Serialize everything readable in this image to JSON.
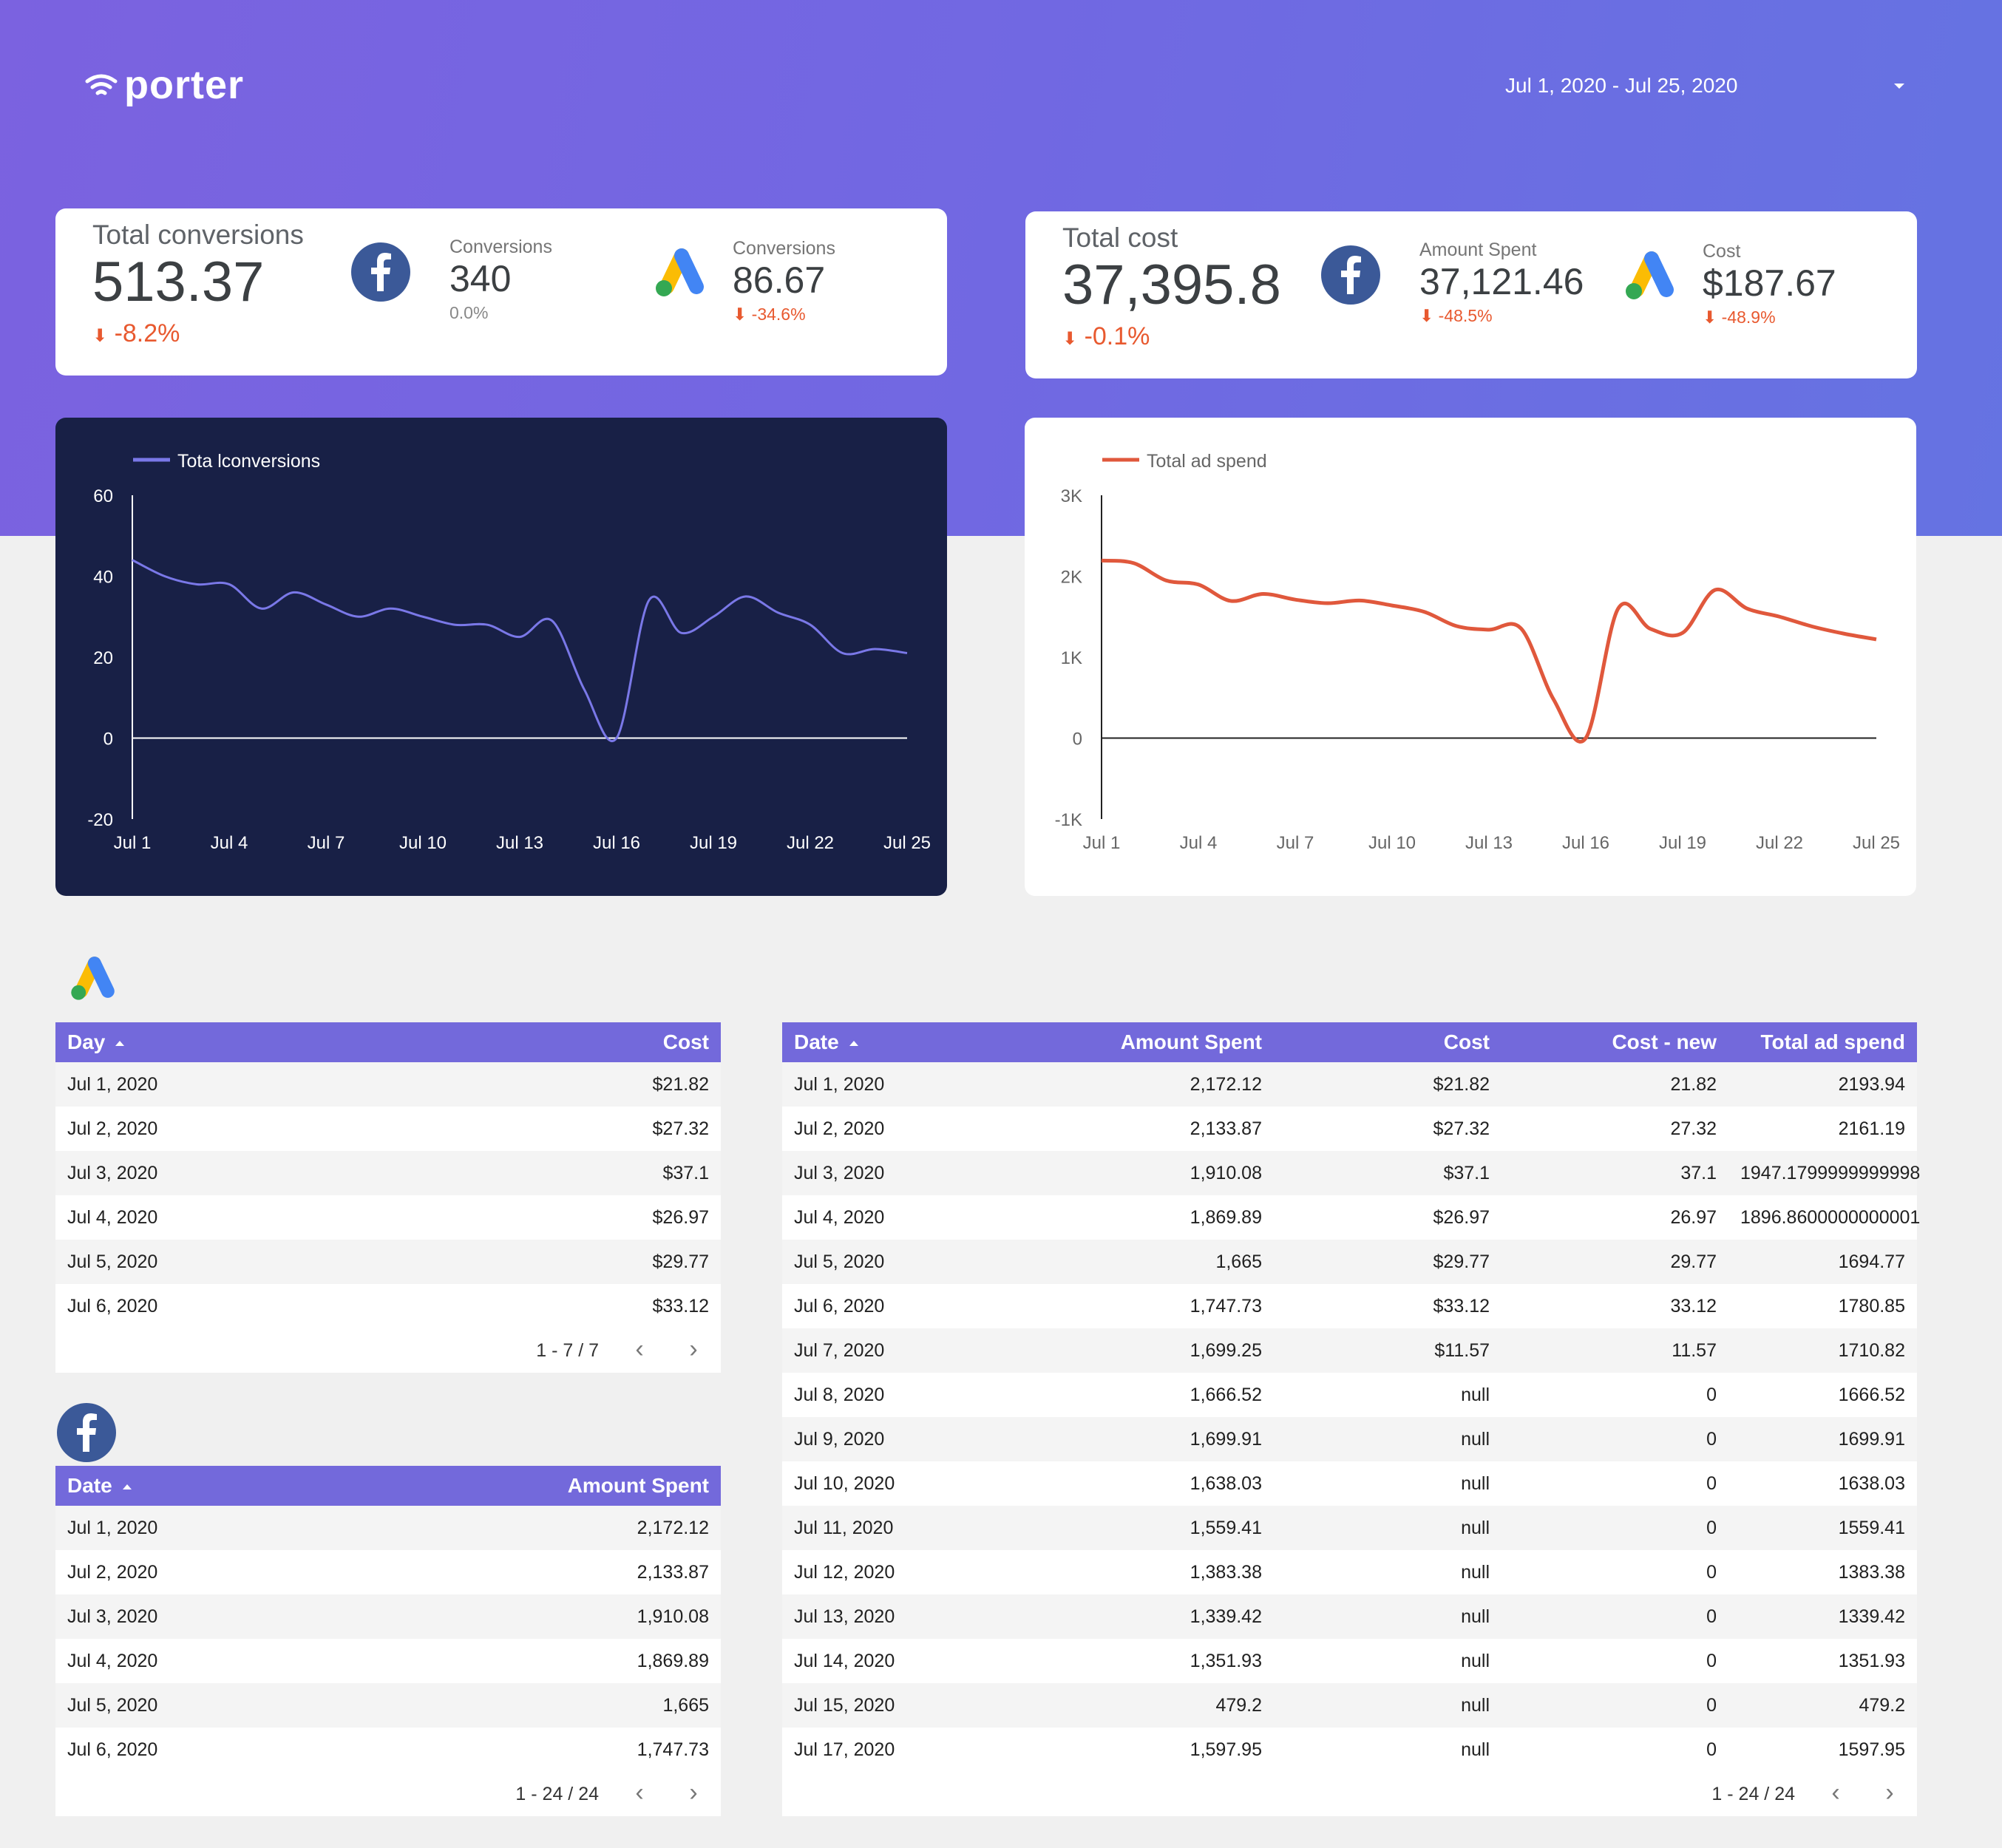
{
  "header": {
    "logo_text": "porter",
    "date_range": "Jul 1, 2020 - Jul 25, 2020"
  },
  "conversions_card": {
    "title": "Total conversions",
    "value": "513.37",
    "delta": "-8.2%",
    "facebook": {
      "label": "Conversions",
      "value": "340",
      "delta": "0.0%"
    },
    "google": {
      "label": "Conversions",
      "value": "86.67",
      "delta": "-34.6%"
    }
  },
  "cost_card": {
    "title": "Total cost",
    "value": "37,395.8",
    "delta": "-0.1%",
    "facebook": {
      "label": "Amount Spent",
      "value": "37,121.46",
      "delta": "-48.5%"
    },
    "google": {
      "label": "Cost",
      "value": "$187.67",
      "delta": "-48.9%"
    }
  },
  "colors": {
    "hero_gradient": [
      "#7b62e0",
      "#6573e2"
    ],
    "navy_chart_bg": "#182046",
    "conversion_line": "#7a78e8",
    "spend_line": "#e0583c",
    "table_header": "#7369db",
    "negative": "#e8592f",
    "facebook_blue": "#3b5998"
  },
  "chart_data": [
    {
      "type": "line",
      "legend": "Tota lconversions",
      "x_ticks": [
        "Jul 1",
        "Jul 4",
        "Jul 7",
        "Jul 10",
        "Jul 13",
        "Jul 16",
        "Jul 19",
        "Jul 22",
        "Jul 25"
      ],
      "y_ticks": [
        "60",
        "40",
        "20",
        "0",
        "-20"
      ],
      "ylim": [
        -20,
        60
      ],
      "x": [
        "Jul 1",
        "Jul 2",
        "Jul 3",
        "Jul 4",
        "Jul 5",
        "Jul 6",
        "Jul 7",
        "Jul 8",
        "Jul 9",
        "Jul 10",
        "Jul 11",
        "Jul 12",
        "Jul 13",
        "Jul 14",
        "Jul 15",
        "Jul 16",
        "Jul 17",
        "Jul 18",
        "Jul 19",
        "Jul 20",
        "Jul 21",
        "Jul 22",
        "Jul 23",
        "Jul 24",
        "Jul 25"
      ],
      "series": [
        {
          "values": [
            44,
            40,
            38,
            38,
            32,
            36,
            33,
            30,
            32,
            30,
            28,
            28,
            25,
            29,
            12,
            0,
            34,
            26,
            30,
            35,
            31,
            28,
            21,
            22,
            21
          ]
        }
      ]
    },
    {
      "type": "line",
      "legend": "Total ad spend",
      "x_ticks": [
        "Jul 1",
        "Jul 4",
        "Jul 7",
        "Jul 10",
        "Jul 13",
        "Jul 16",
        "Jul 19",
        "Jul 22",
        "Jul 25"
      ],
      "y_ticks": [
        "3K",
        "2K",
        "1K",
        "0",
        "-1K"
      ],
      "ylim": [
        -1000,
        3000
      ],
      "x": [
        "Jul 1",
        "Jul 2",
        "Jul 3",
        "Jul 4",
        "Jul 5",
        "Jul 6",
        "Jul 7",
        "Jul 8",
        "Jul 9",
        "Jul 10",
        "Jul 11",
        "Jul 12",
        "Jul 13",
        "Jul 14",
        "Jul 15",
        "Jul 16",
        "Jul 17",
        "Jul 18",
        "Jul 19",
        "Jul 20",
        "Jul 21",
        "Jul 22",
        "Jul 23",
        "Jul 24",
        "Jul 25"
      ],
      "series": [
        {
          "values": [
            2193.94,
            2161.19,
            1947.18,
            1896.86,
            1694.77,
            1780.85,
            1710.82,
            1666.52,
            1699.91,
            1638.03,
            1559.41,
            1383.38,
            1339.42,
            1351.93,
            479.2,
            0,
            1597.95,
            1350,
            1300,
            1830,
            1600,
            1500,
            1380,
            1290,
            1220
          ]
        }
      ]
    }
  ],
  "google_table": {
    "columns": [
      "Day",
      "Cost"
    ],
    "rows": [
      [
        "Jul 1, 2020",
        "$21.82"
      ],
      [
        "Jul 2, 2020",
        "$27.32"
      ],
      [
        "Jul 3, 2020",
        "$37.1"
      ],
      [
        "Jul 4, 2020",
        "$26.97"
      ],
      [
        "Jul 5, 2020",
        "$29.77"
      ],
      [
        "Jul 6, 2020",
        "$33.12"
      ]
    ],
    "pagination": "1 - 7 / 7"
  },
  "facebook_table": {
    "columns": [
      "Date",
      "Amount Spent"
    ],
    "rows": [
      [
        "Jul 1, 2020",
        "2,172.12"
      ],
      [
        "Jul 2, 2020",
        "2,133.87"
      ],
      [
        "Jul 3, 2020",
        "1,910.08"
      ],
      [
        "Jul 4, 2020",
        "1,869.89"
      ],
      [
        "Jul 5, 2020",
        "1,665"
      ],
      [
        "Jul 6, 2020",
        "1,747.73"
      ]
    ],
    "pagination": "1 - 24 / 24"
  },
  "combined_table": {
    "columns": [
      "Date",
      "Amount Spent",
      "Cost",
      "Cost - new",
      "Total ad spend"
    ],
    "rows": [
      [
        "Jul 1, 2020",
        "2,172.12",
        "$21.82",
        "21.82",
        "2193.94"
      ],
      [
        "Jul 2, 2020",
        "2,133.87",
        "$27.32",
        "27.32",
        "2161.19"
      ],
      [
        "Jul 3, 2020",
        "1,910.08",
        "$37.1",
        "37.1",
        "1947.1799999999998"
      ],
      [
        "Jul 4, 2020",
        "1,869.89",
        "$26.97",
        "26.97",
        "1896.8600000000001"
      ],
      [
        "Jul 5, 2020",
        "1,665",
        "$29.77",
        "29.77",
        "1694.77"
      ],
      [
        "Jul 6, 2020",
        "1,747.73",
        "$33.12",
        "33.12",
        "1780.85"
      ],
      [
        "Jul 7, 2020",
        "1,699.25",
        "$11.57",
        "11.57",
        "1710.82"
      ],
      [
        "Jul 8, 2020",
        "1,666.52",
        "null",
        "0",
        "1666.52"
      ],
      [
        "Jul 9, 2020",
        "1,699.91",
        "null",
        "0",
        "1699.91"
      ],
      [
        "Jul 10, 2020",
        "1,638.03",
        "null",
        "0",
        "1638.03"
      ],
      [
        "Jul 11, 2020",
        "1,559.41",
        "null",
        "0",
        "1559.41"
      ],
      [
        "Jul 12, 2020",
        "1,383.38",
        "null",
        "0",
        "1383.38"
      ],
      [
        "Jul 13, 2020",
        "1,339.42",
        "null",
        "0",
        "1339.42"
      ],
      [
        "Jul 14, 2020",
        "1,351.93",
        "null",
        "0",
        "1351.93"
      ],
      [
        "Jul 15, 2020",
        "479.2",
        "null",
        "0",
        "479.2"
      ],
      [
        "Jul 17, 2020",
        "1,597.95",
        "null",
        "0",
        "1597.95"
      ]
    ],
    "pagination": "1 - 24 / 24"
  },
  "icons": {
    "logo": "wifi-signal-icon",
    "facebook": "facebook-logo-icon",
    "google_ads": "google-ads-logo-icon",
    "dropdown": "caret-down-icon",
    "prev": "chevron-left-icon",
    "next": "chevron-right-icon",
    "delta_down": "arrow-down-icon"
  }
}
